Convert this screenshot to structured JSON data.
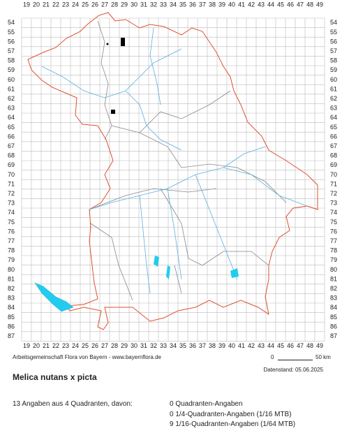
{
  "map": {
    "columns": [
      19,
      20,
      21,
      22,
      23,
      24,
      25,
      26,
      27,
      28,
      29,
      30,
      31,
      32,
      33,
      34,
      35,
      36,
      37,
      38,
      39,
      40,
      41,
      42,
      43,
      44,
      45,
      46,
      47,
      48,
      49
    ],
    "rows": [
      54,
      55,
      56,
      57,
      58,
      59,
      60,
      61,
      62,
      63,
      64,
      65,
      66,
      67,
      68,
      69,
      70,
      71,
      72,
      73,
      74,
      75,
      76,
      77,
      78,
      79,
      80,
      81,
      82,
      83,
      84,
      85,
      86,
      87
    ],
    "credit": "Arbeitsgemeinschaft Flora von Bayern - www.bayernflora.de",
    "scale_start": "0",
    "scale_end": "50 km",
    "data_date": "Datenstand: 05.06.2025"
  },
  "info": {
    "title": "Melica nutans x picta",
    "summary": "13 Angaben aus 4 Quadranten, davon:",
    "breakdown": [
      "0 Quadranten-Angaben",
      "0 1/4-Quadranten-Angaben (1/16 MTB)",
      "9 1/16-Quadranten-Angaben (1/64 MTB)"
    ]
  }
}
